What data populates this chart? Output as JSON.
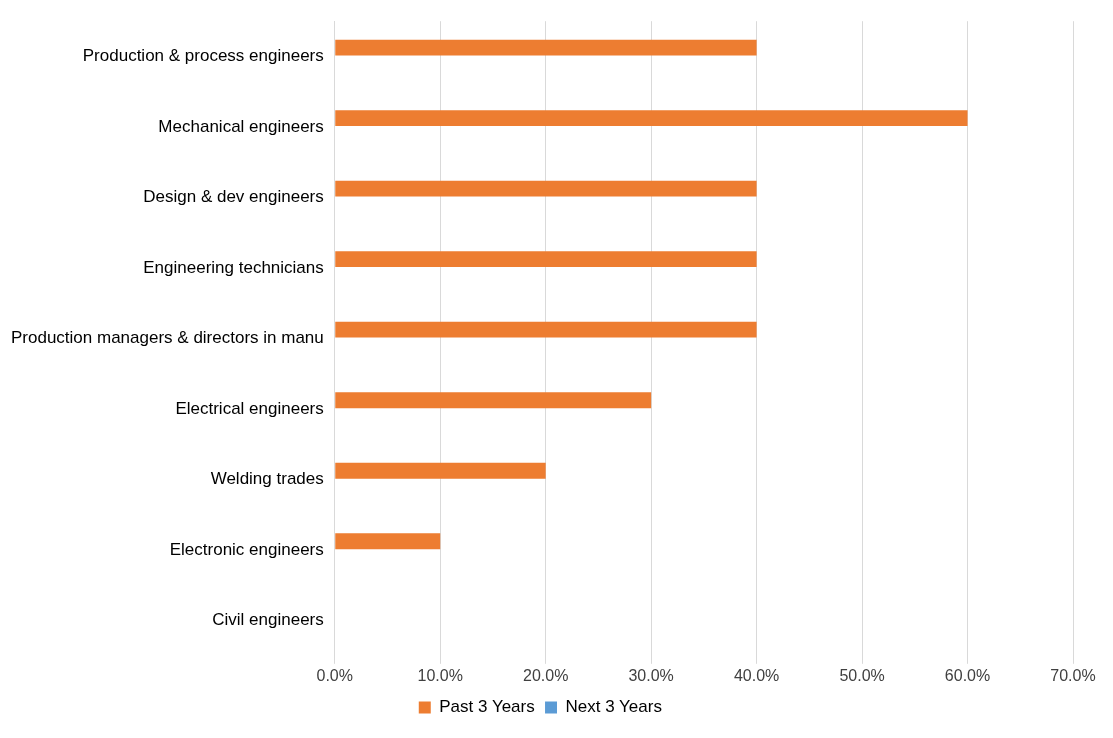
{
  "chart_data": {
    "type": "bar",
    "orientation": "horizontal",
    "categories": [
      "Production & process engineers",
      "Mechanical engineers",
      "Design & dev engineers",
      "Engineering technicians",
      "Production managers & directors in manu",
      "Electrical engineers",
      "Welding trades",
      "Electronic engineers",
      "Civil engineers"
    ],
    "series": [
      {
        "name": "Past 3 Years",
        "color": "#ed7d31",
        "values": [
          40,
          60,
          40,
          40,
          40,
          30,
          20,
          10,
          null
        ]
      },
      {
        "name": "Next 3 Years",
        "color": "#5b9bd5",
        "values": [
          null,
          null,
          null,
          null,
          null,
          null,
          null,
          null,
          null
        ]
      }
    ],
    "xlim": [
      0,
      70
    ],
    "xticks": [
      {
        "value": 0,
        "label": "0.0%"
      },
      {
        "value": 10,
        "label": "10.0%"
      },
      {
        "value": 20,
        "label": "20.0%"
      },
      {
        "value": 30,
        "label": "30.0%"
      },
      {
        "value": 40,
        "label": "40.0%"
      },
      {
        "value": 50,
        "label": "50.0%"
      },
      {
        "value": 60,
        "label": "60.0%"
      },
      {
        "value": 70,
        "label": "70.0%"
      }
    ],
    "grid": "x",
    "legend": "bottom"
  }
}
